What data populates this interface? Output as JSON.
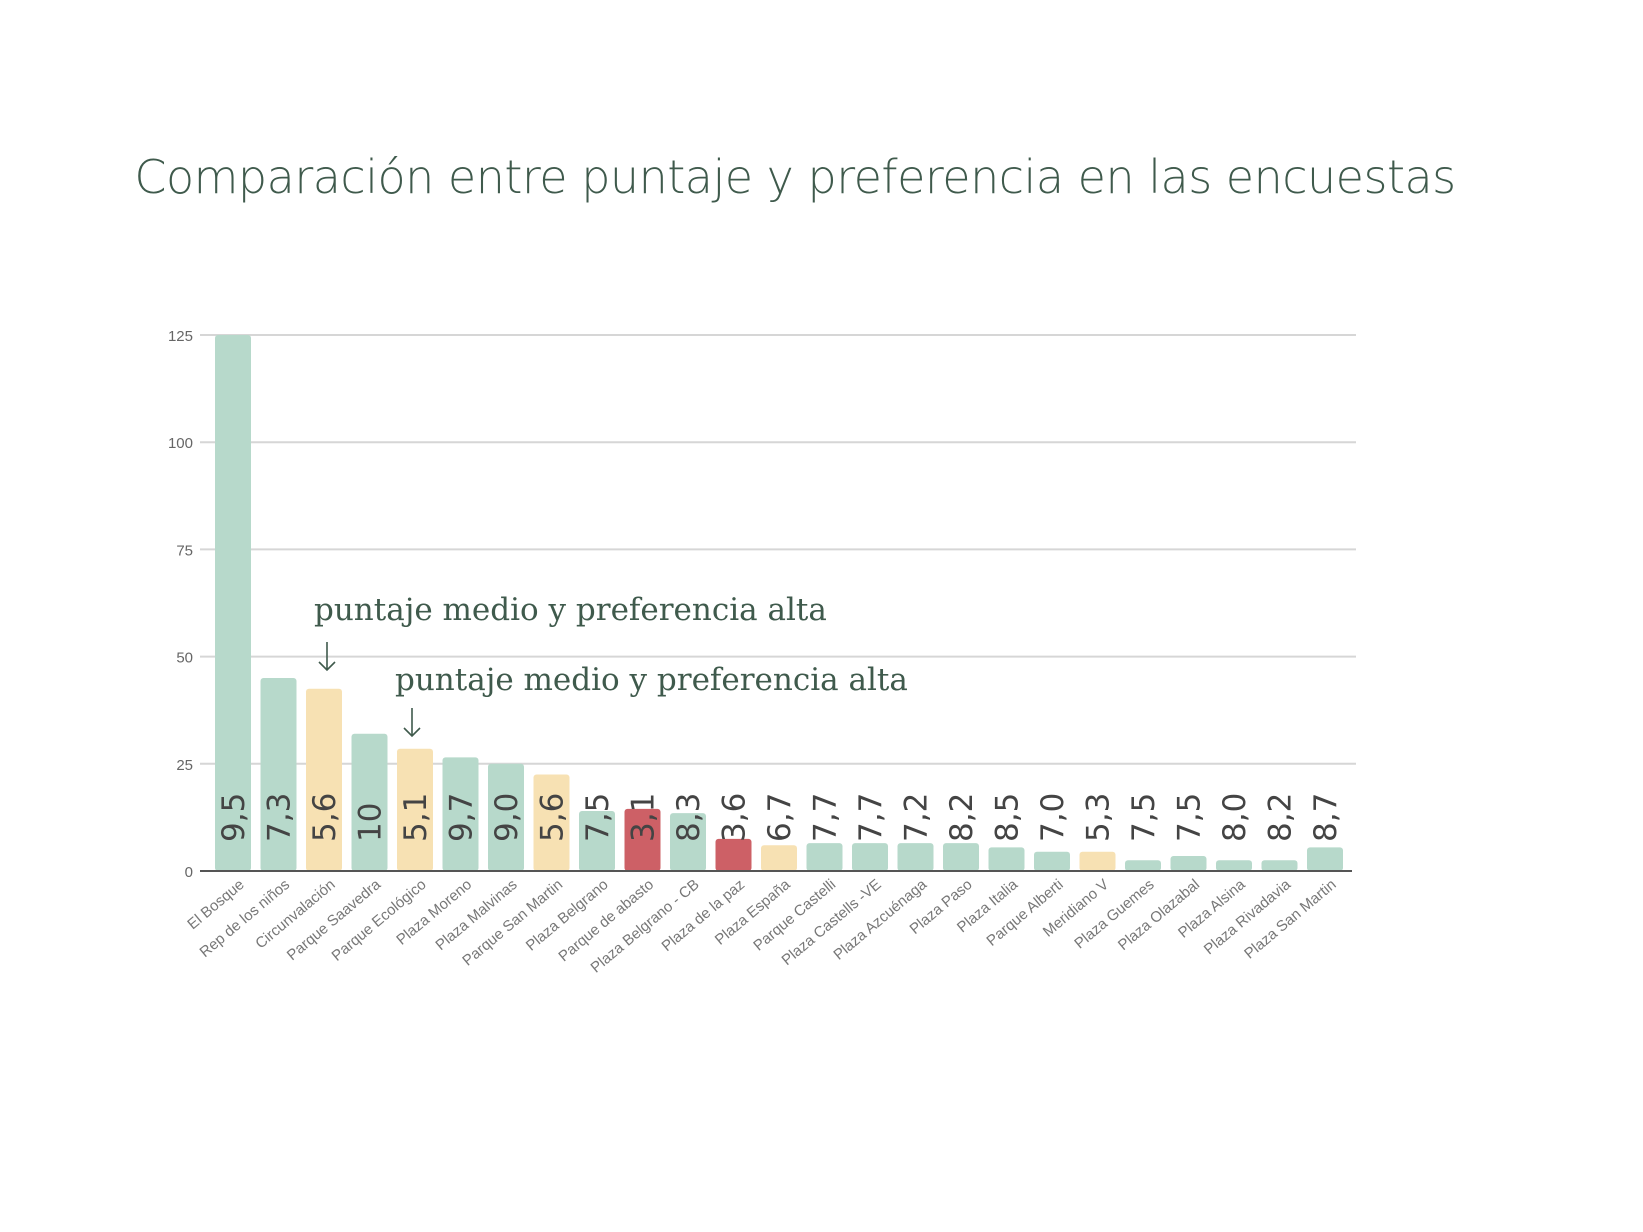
{
  "chart_data": {
    "type": "bar",
    "title": "Comparación entre puntaje y preferencia en las encuestas",
    "xlabel": "",
    "ylabel": "",
    "ylim": [
      0,
      125
    ],
    "yticks": [
      0,
      25,
      50,
      75,
      100,
      125
    ],
    "grid": true,
    "categories": [
      "El Bosque",
      "Rep de los niños",
      "Circunvalación",
      "Parque Saavedra",
      "Parque Ecológico",
      "Plaza Moreno",
      "Plaza Malvinas",
      "Parque San Martin",
      "Plaza Belgrano",
      "Parque de abasto",
      "Plaza Belgrano - CB",
      "Plaza de la paz",
      "Plaza España",
      "Parque Castelli",
      "Plaza Castells -VE",
      "Plaza Azcuénaga",
      "Plaza Paso",
      "Plaza Italia",
      "Parque Alberti",
      "Meridiano V",
      "Plaza Guemes",
      "Plaza Olazabal",
      "Plaza Alsina",
      "Plaza Rivadavia",
      "Plaza San Martin"
    ],
    "values": [
      125,
      45,
      42.5,
      32,
      28.5,
      26.5,
      25,
      22.5,
      14,
      14.5,
      13.5,
      7.5,
      6,
      6.5,
      6.5,
      6.5,
      6.5,
      5.5,
      4.5,
      4.5,
      2.5,
      3.5,
      2.5,
      2.5,
      5.5
    ],
    "scores": [
      "9,5",
      "7,3",
      "5,6",
      "10",
      "5,1",
      "9,7",
      "9,0",
      "5,6",
      "7,5",
      "3,1",
      "8,3",
      "3,6",
      "6,7",
      "7,7",
      "7,7",
      "7,2",
      "8,2",
      "8,5",
      "7,0",
      "5,3",
      "7,5",
      "7,5",
      "8,0",
      "8,2",
      "8,7"
    ],
    "categories_level": [
      "high",
      "high",
      "mid",
      "high",
      "mid",
      "high",
      "high",
      "mid",
      "high",
      "low",
      "high",
      "low",
      "mid",
      "high",
      "high",
      "high",
      "high",
      "high",
      "high",
      "mid",
      "high",
      "high",
      "high",
      "high",
      "high"
    ],
    "colors": {
      "high": "#b7d9cb",
      "mid": "#f7e1b3",
      "low": "#cd6066"
    },
    "annotations": [
      {
        "text": "puntaje medio y preferencia alta",
        "target": "Circunvalación"
      },
      {
        "text": "puntaje medio y preferencia alta",
        "target": "Parque Ecológico"
      }
    ]
  }
}
